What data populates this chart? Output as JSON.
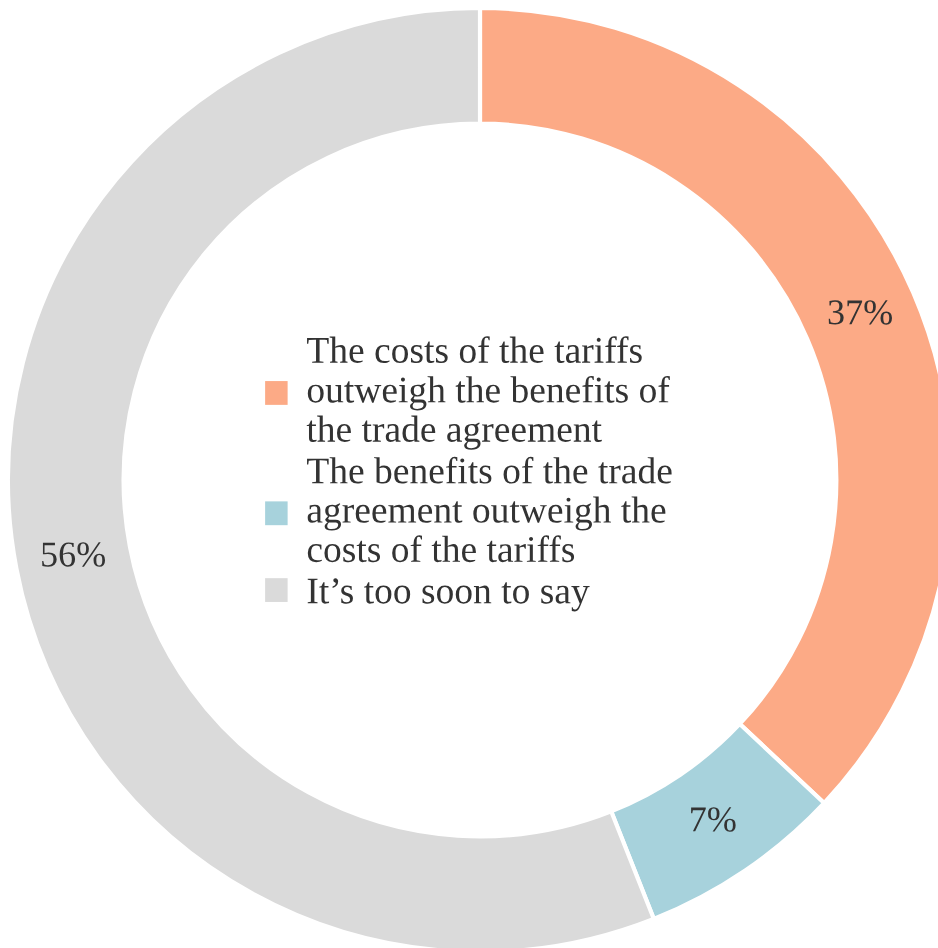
{
  "chart_data": {
    "type": "donut",
    "categories": [
      "The costs of the tariffs\noutweigh the benefits of\nthe trade agreement",
      "The benefits of the trade\nagreement outweigh the\ncosts of the tariffs",
      "It’s too soon to say"
    ],
    "values": [
      37,
      7,
      56
    ],
    "colors": [
      "#fcaa86",
      "#a7d2dc",
      "#dadada"
    ],
    "value_labels": [
      "37%",
      "7%",
      "56%"
    ],
    "legend": "center"
  }
}
